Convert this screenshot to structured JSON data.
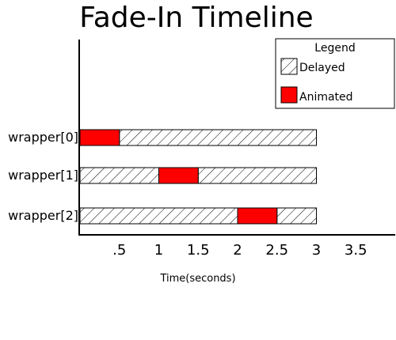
{
  "chart_data": {
    "type": "bar",
    "title": "Fade-In Timeline",
    "xlabel": "Time(seconds)",
    "ylabel": "",
    "xlim": [
      0,
      4
    ],
    "x_ticks": [
      0.5,
      1,
      1.5,
      2,
      2.5,
      3,
      3.5
    ],
    "x_tick_labels": [
      ".5",
      "1",
      "1.5",
      "2",
      "2.5",
      "3",
      "3.5"
    ],
    "grid": false,
    "legend": {
      "title": "Legend",
      "position": "top-right",
      "entries": [
        {
          "label": "Delayed",
          "pattern": "hatched"
        },
        {
          "label": "Animated",
          "color": "#ff0000"
        }
      ]
    },
    "categories": [
      "wrapper[0]",
      "wrapper[1]",
      "wrapper[2]"
    ],
    "series": [
      {
        "name": "Delayed",
        "pattern": "hatched",
        "segments": [
          [
            [
              0.5,
              3
            ]
          ],
          [
            [
              0,
              1
            ],
            [
              1.5,
              3
            ]
          ],
          [
            [
              0,
              2
            ],
            [
              2.5,
              3
            ]
          ]
        ]
      },
      {
        "name": "Animated",
        "color": "#ff0000",
        "segments": [
          [
            [
              0,
              0.5
            ]
          ],
          [
            [
              1,
              1.5
            ]
          ],
          [
            [
              2,
              2.5
            ]
          ]
        ]
      }
    ]
  }
}
